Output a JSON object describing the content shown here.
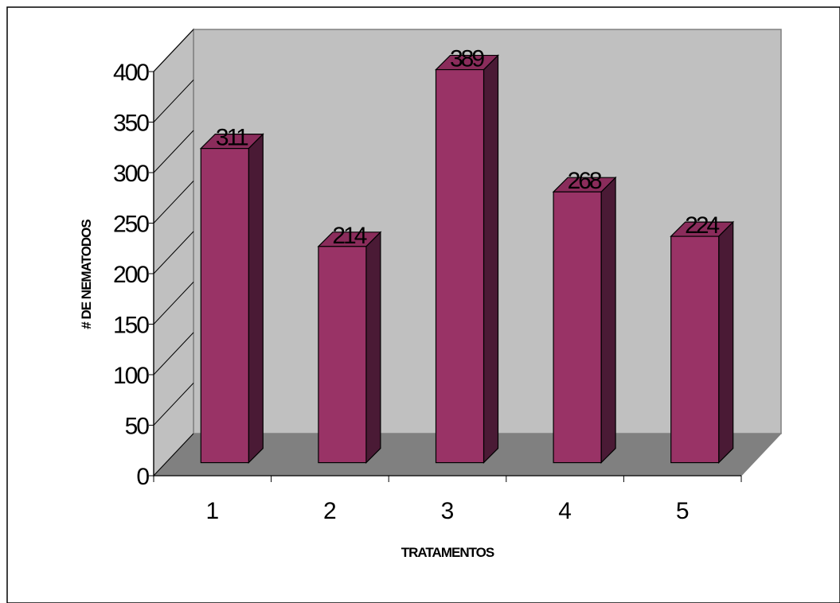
{
  "chart_data": {
    "type": "bar",
    "categories": [
      "1",
      "2",
      "3",
      "4",
      "5"
    ],
    "values": [
      311,
      214,
      389,
      268,
      224
    ],
    "data_labels": [
      "311",
      "214",
      "389",
      "268",
      "224"
    ],
    "title": "",
    "xlabel": "TRATAMENTOS",
    "ylabel": "# DE NEMATODOS",
    "ylim": [
      0,
      400
    ],
    "yticks": [
      0,
      50,
      100,
      150,
      200,
      250,
      300,
      350,
      400
    ],
    "grid": false,
    "legend": "none",
    "style": "3d-column",
    "colors": {
      "bar_front": "#993366",
      "bar_top": "#8a2c5b",
      "bar_side": "#4a1a35",
      "back_wall": "#c0c0c0",
      "floor": "#808080"
    }
  }
}
